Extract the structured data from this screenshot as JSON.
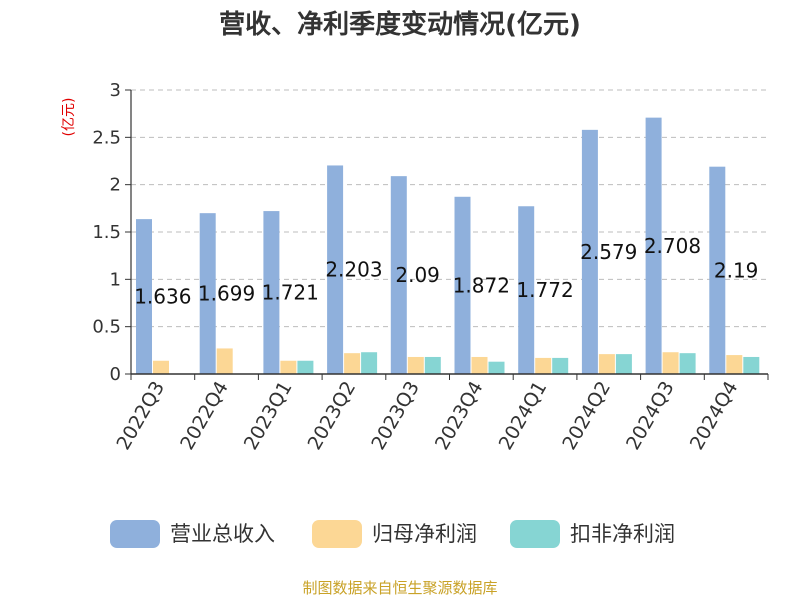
{
  "chart_data": {
    "type": "bar",
    "title": "营收、净利季度变动情况(亿元)",
    "unit_label": "(亿元)",
    "categories": [
      "2022Q3",
      "2022Q4",
      "2023Q1",
      "2023Q2",
      "2023Q3",
      "2023Q4",
      "2024Q1",
      "2024Q2",
      "2024Q3",
      "2024Q4"
    ],
    "series": [
      {
        "name": "营业总收入",
        "color": "#8fb0dc",
        "values": [
          1.636,
          1.699,
          1.721,
          2.203,
          2.09,
          1.872,
          1.772,
          2.579,
          2.708,
          2.19
        ],
        "data_labels": [
          "1.636",
          "1.699",
          "1.721",
          "2.203",
          "2.09",
          "1.872",
          "1.772",
          "2.579",
          "2.708",
          "2.19"
        ]
      },
      {
        "name": "归母净利润",
        "color": "#fcd795",
        "values": [
          0.14,
          0.27,
          0.14,
          0.22,
          0.18,
          0.18,
          0.17,
          0.21,
          0.23,
          0.2
        ]
      },
      {
        "name": "扣非净利润",
        "color": "#86d5d3",
        "values": [
          null,
          null,
          0.14,
          0.23,
          0.18,
          0.13,
          0.17,
          0.21,
          0.22,
          0.18
        ]
      }
    ],
    "yticks": [
      "0",
      "0.5",
      "1",
      "1.5",
      "2",
      "2.5",
      "3"
    ],
    "ylim": [
      0,
      3
    ],
    "grid": true,
    "legend_position": "bottom"
  },
  "source_text": "制图数据来自恒生聚源数据库"
}
